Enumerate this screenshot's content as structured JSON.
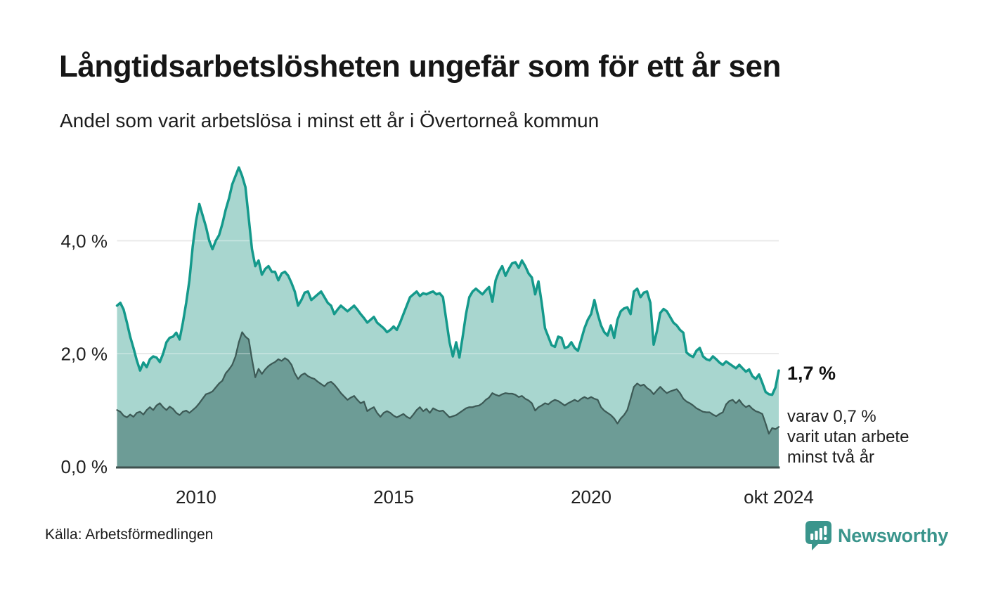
{
  "header": {
    "title": "Långtidsarbetslösheten ungefär som för ett år sen",
    "subtitle": "Andel som varit arbetslösa i minst ett år i Övertorneå kommun"
  },
  "footer": {
    "source": "Källa: Arbetsförmedlingen",
    "brand": "Newsworthy"
  },
  "colors": {
    "series1_line": "#14998b",
    "series1_fill": "#a8d6cf",
    "series2_line": "#3d5a56",
    "series2_fill": "#6d9c96",
    "gridline": "#d8d8d8",
    "axis": "#3f514e",
    "text": "#1a1a1a",
    "brand_teal": "#3a958c"
  },
  "chart_data": {
    "type": "area",
    "title": "Långtidsarbetslösheten ungefär som för ett år sen",
    "subtitle": "Andel som varit arbetslösa i minst ett år i Övertorneå kommun",
    "x_start": "2008-01",
    "x_end": "2024-10",
    "frequency": "monthly",
    "ylim": [
      0,
      5.5
    ],
    "grid": "horizontal",
    "legend_position": "none",
    "yticks": [
      {
        "value": 0,
        "label": "0,0 %"
      },
      {
        "value": 2,
        "label": "2,0 %"
      },
      {
        "value": 4,
        "label": "4,0 %"
      }
    ],
    "xticks": [
      {
        "index": 24,
        "label": "2010"
      },
      {
        "index": 84,
        "label": "2015"
      },
      {
        "index": 144,
        "label": "2020"
      },
      {
        "index": 201,
        "label": "okt 2024"
      }
    ],
    "series": [
      {
        "name": "Arbetslösa minst ett år",
        "end_value": 1.7,
        "values": [
          2.85,
          2.9,
          2.78,
          2.55,
          2.3,
          2.1,
          1.88,
          1.7,
          1.84,
          1.76,
          1.9,
          1.95,
          1.93,
          1.85,
          2.0,
          2.2,
          2.28,
          2.3,
          2.37,
          2.25,
          2.55,
          2.9,
          3.3,
          3.9,
          4.35,
          4.65,
          4.45,
          4.25,
          4.0,
          3.85,
          4.0,
          4.1,
          4.3,
          4.55,
          4.75,
          5.0,
          5.15,
          5.3,
          5.15,
          4.95,
          4.4,
          3.85,
          3.55,
          3.65,
          3.4,
          3.5,
          3.55,
          3.45,
          3.45,
          3.3,
          3.42,
          3.45,
          3.38,
          3.25,
          3.1,
          2.85,
          2.95,
          3.08,
          3.1,
          2.95,
          3.0,
          3.05,
          3.1,
          3.0,
          2.9,
          2.85,
          2.7,
          2.78,
          2.85,
          2.8,
          2.75,
          2.8,
          2.85,
          2.78,
          2.7,
          2.63,
          2.55,
          2.6,
          2.65,
          2.55,
          2.5,
          2.45,
          2.38,
          2.42,
          2.48,
          2.42,
          2.55,
          2.7,
          2.85,
          3.0,
          3.05,
          3.1,
          3.02,
          3.07,
          3.05,
          3.08,
          3.1,
          3.05,
          3.07,
          3.0,
          2.6,
          2.2,
          1.95,
          2.2,
          1.93,
          2.3,
          2.7,
          3.0,
          3.1,
          3.15,
          3.1,
          3.05,
          3.12,
          3.18,
          2.92,
          3.3,
          3.45,
          3.55,
          3.38,
          3.5,
          3.6,
          3.62,
          3.52,
          3.65,
          3.55,
          3.42,
          3.35,
          3.05,
          3.28,
          2.9,
          2.45,
          2.3,
          2.15,
          2.12,
          2.3,
          2.28,
          2.1,
          2.12,
          2.2,
          2.1,
          2.05,
          2.25,
          2.45,
          2.6,
          2.7,
          2.95,
          2.7,
          2.5,
          2.38,
          2.32,
          2.5,
          2.28,
          2.6,
          2.75,
          2.8,
          2.82,
          2.7,
          3.1,
          3.15,
          3.0,
          3.08,
          3.1,
          2.9,
          2.16,
          2.4,
          2.72,
          2.79,
          2.75,
          2.65,
          2.55,
          2.5,
          2.42,
          2.37,
          2.02,
          1.97,
          1.94,
          2.05,
          2.1,
          1.95,
          1.9,
          1.88,
          1.95,
          1.9,
          1.84,
          1.8,
          1.86,
          1.82,
          1.78,
          1.74,
          1.8,
          1.74,
          1.68,
          1.72,
          1.6,
          1.55,
          1.63,
          1.48,
          1.32,
          1.28,
          1.27,
          1.4,
          1.7
        ]
      },
      {
        "name": "Varav utan arbete minst två år",
        "end_value": 0.7,
        "values": [
          1.0,
          0.97,
          0.9,
          0.87,
          0.92,
          0.88,
          0.95,
          0.97,
          0.92,
          1.0,
          1.05,
          1.0,
          1.08,
          1.12,
          1.05,
          1.0,
          1.06,
          1.02,
          0.95,
          0.91,
          0.97,
          0.99,
          0.95,
          1.0,
          1.05,
          1.12,
          1.2,
          1.28,
          1.3,
          1.33,
          1.4,
          1.47,
          1.52,
          1.65,
          1.72,
          1.8,
          1.95,
          2.2,
          2.38,
          2.3,
          2.25,
          1.9,
          1.58,
          1.73,
          1.64,
          1.72,
          1.78,
          1.82,
          1.85,
          1.9,
          1.87,
          1.92,
          1.88,
          1.8,
          1.65,
          1.55,
          1.62,
          1.65,
          1.6,
          1.57,
          1.55,
          1.5,
          1.46,
          1.42,
          1.48,
          1.5,
          1.45,
          1.38,
          1.3,
          1.24,
          1.18,
          1.22,
          1.25,
          1.18,
          1.12,
          1.15,
          0.98,
          1.02,
          1.05,
          0.95,
          0.88,
          0.95,
          0.98,
          0.95,
          0.9,
          0.87,
          0.9,
          0.93,
          0.88,
          0.85,
          0.92,
          1.0,
          1.05,
          0.98,
          1.02,
          0.95,
          1.03,
          1.0,
          0.98,
          0.99,
          0.93,
          0.87,
          0.89,
          0.91,
          0.95,
          0.99,
          1.03,
          1.05,
          1.05,
          1.07,
          1.08,
          1.12,
          1.18,
          1.22,
          1.3,
          1.27,
          1.25,
          1.28,
          1.3,
          1.29,
          1.29,
          1.27,
          1.23,
          1.25,
          1.2,
          1.17,
          1.12,
          0.99,
          1.05,
          1.08,
          1.12,
          1.1,
          1.15,
          1.18,
          1.16,
          1.12,
          1.08,
          1.12,
          1.15,
          1.18,
          1.15,
          1.2,
          1.23,
          1.2,
          1.23,
          1.2,
          1.18,
          1.05,
          0.99,
          0.95,
          0.91,
          0.85,
          0.76,
          0.85,
          0.91,
          1.0,
          1.2,
          1.41,
          1.47,
          1.43,
          1.45,
          1.39,
          1.35,
          1.28,
          1.35,
          1.41,
          1.35,
          1.3,
          1.33,
          1.35,
          1.37,
          1.3,
          1.2,
          1.15,
          1.12,
          1.08,
          1.03,
          1.0,
          0.97,
          0.96,
          0.96,
          0.92,
          0.89,
          0.93,
          0.96,
          1.1,
          1.16,
          1.18,
          1.12,
          1.18,
          1.1,
          1.05,
          1.08,
          1.02,
          0.98,
          0.96,
          0.93,
          0.76,
          0.58,
          0.68,
          0.66,
          0.7
        ]
      }
    ],
    "annotations": {
      "end_value_label": "1,7 %",
      "note_lines": [
        "varav 0,7 %",
        "varit utan arbete",
        "minst två år"
      ]
    }
  }
}
